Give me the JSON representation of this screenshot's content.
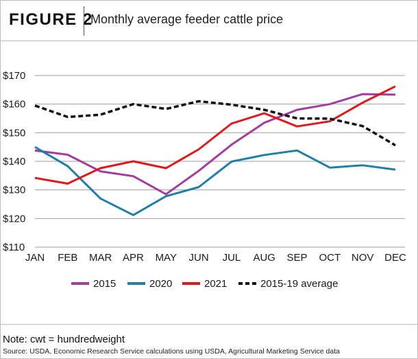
{
  "figure": {
    "label": "FIGURE 2",
    "title": "Monthly average feeder cattle price"
  },
  "chart_data": {
    "type": "line",
    "categories": [
      "JAN",
      "FEB",
      "MAR",
      "APR",
      "MAY",
      "JUN",
      "JUL",
      "AUG",
      "SEP",
      "OCT",
      "NOV",
      "DEC"
    ],
    "ylim": [
      110,
      170
    ],
    "yticks": [
      110,
      120,
      130,
      140,
      150,
      160,
      170
    ],
    "ytick_labels": [
      "$110",
      "$120",
      "$130",
      "$140",
      "$150",
      "$160",
      "$170"
    ],
    "grid": true,
    "legend_position": "bottom",
    "series": [
      {
        "name": "2015",
        "color": "#a23d9e",
        "dashed": false,
        "values": [
          143.8,
          142.3,
          136.5,
          134.8,
          128.5,
          136.7,
          145.8,
          153.5,
          158.0,
          160.0,
          163.5,
          163.3
        ]
      },
      {
        "name": "2020",
        "color": "#1f7fa6",
        "dashed": false,
        "values": [
          145.0,
          138.3,
          127.0,
          121.2,
          127.8,
          131.0,
          139.9,
          142.2,
          143.8,
          137.8,
          138.6,
          137.1
        ]
      },
      {
        "name": "2021",
        "color": "#e3171b",
        "dashed": false,
        "values": [
          134.2,
          132.2,
          137.6,
          140.0,
          137.6,
          144.2,
          153.2,
          156.8,
          152.2,
          154.0,
          160.5,
          166.2
        ]
      },
      {
        "name": "2015-19 average",
        "color": "#111111",
        "dashed": true,
        "values": [
          159.5,
          155.5,
          156.3,
          160.0,
          158.3,
          161.0,
          159.8,
          158.0,
          155.0,
          154.9,
          152.3,
          145.6
        ]
      }
    ]
  },
  "footer": {
    "note": "Note: cwt = hundredweight",
    "source": "Source: USDA, Economic Research Service calculations using USDA, Agricultural Marketing Service data"
  }
}
